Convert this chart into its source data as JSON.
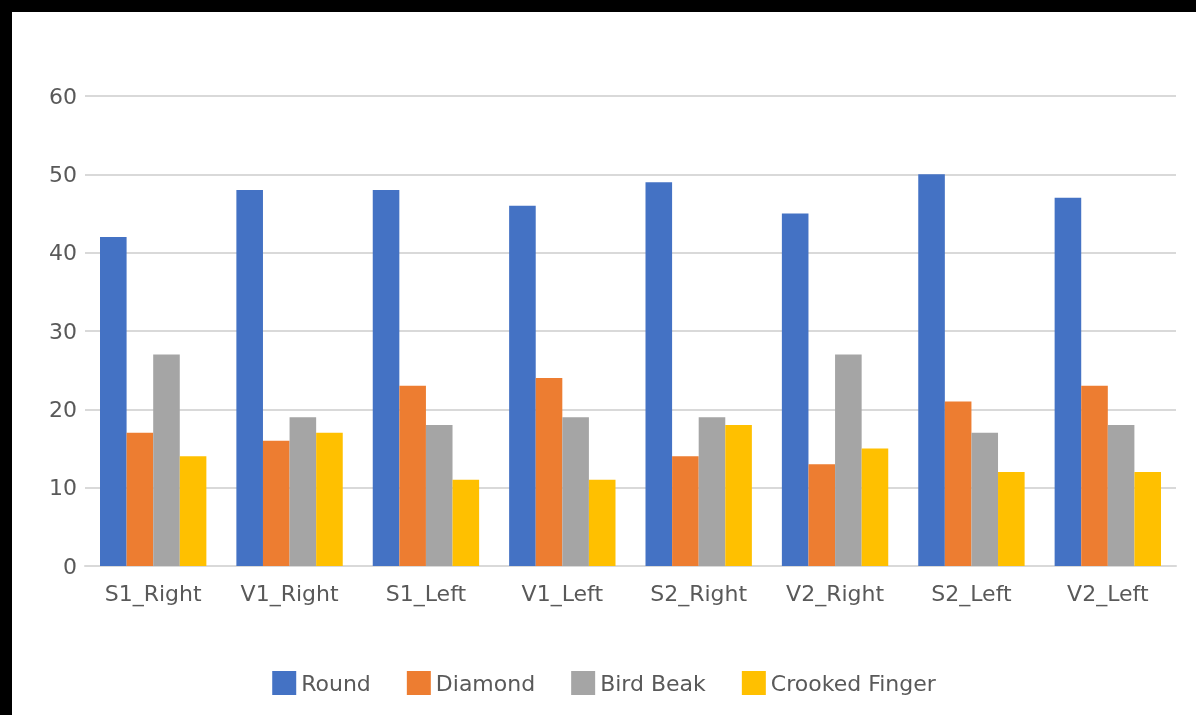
{
  "chart_data": {
    "type": "bar",
    "categories": [
      "S1_Right",
      "V1_Right",
      "S1_Left",
      "V1_Left",
      "S2_Right",
      "V2_Right",
      "S2_Left",
      "V2_Left"
    ],
    "series": [
      {
        "name": "Round",
        "color": "#4472c4",
        "values": [
          42,
          48,
          48,
          46,
          49,
          45,
          50,
          47
        ]
      },
      {
        "name": "Diamond",
        "color": "#ed7d31",
        "values": [
          17,
          16,
          23,
          24,
          14,
          13,
          21,
          23
        ]
      },
      {
        "name": "Bird Beak",
        "color": "#a5a5a5",
        "values": [
          27,
          19,
          18,
          19,
          19,
          27,
          17,
          18
        ]
      },
      {
        "name": "Crooked Finger",
        "color": "#ffc000",
        "values": [
          14,
          17,
          11,
          11,
          18,
          15,
          12,
          12
        ]
      }
    ],
    "ylim": [
      0,
      60
    ],
    "yticks": [
      0,
      10,
      20,
      30,
      40,
      50,
      60
    ],
    "grid": "y",
    "legend": "bottom"
  }
}
